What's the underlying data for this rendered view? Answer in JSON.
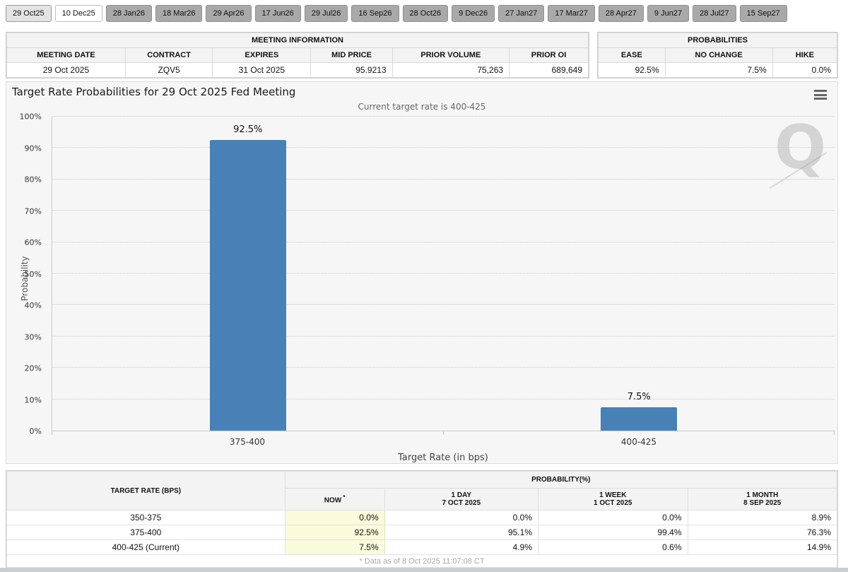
{
  "tabs": [
    {
      "label": "29 Oct25",
      "state": "selected"
    },
    {
      "label": "10 Dec25",
      "state": "active"
    },
    {
      "label": "28 Jan26",
      "state": "default"
    },
    {
      "label": "18 Mar26",
      "state": "default"
    },
    {
      "label": "29 Apr26",
      "state": "default"
    },
    {
      "label": "17 Jun26",
      "state": "default"
    },
    {
      "label": "29 Jul26",
      "state": "default"
    },
    {
      "label": "16 Sep26",
      "state": "default"
    },
    {
      "label": "28 Oct26",
      "state": "default"
    },
    {
      "label": "9 Dec26",
      "state": "default"
    },
    {
      "label": "27 Jan27",
      "state": "default"
    },
    {
      "label": "17 Mar27",
      "state": "default"
    },
    {
      "label": "28 Apr27",
      "state": "default"
    },
    {
      "label": "9 Jun27",
      "state": "default"
    },
    {
      "label": "28 Jul27",
      "state": "default"
    },
    {
      "label": "15 Sep27",
      "state": "default"
    }
  ],
  "meeting_info": {
    "title": "MEETING INFORMATION",
    "headers": [
      "MEETING DATE",
      "CONTRACT",
      "EXPIRES",
      "MID PRICE",
      "PRIOR VOLUME",
      "PRIOR OI"
    ],
    "row": {
      "meeting_date": "29 Oct 2025",
      "contract": "ZQV5",
      "expires": "31 Oct 2025",
      "mid_price": "95.9213",
      "prior_volume": "75,263",
      "prior_oi": "689,649"
    }
  },
  "probabilities_panel": {
    "title": "PROBABILITIES",
    "headers": [
      "EASE",
      "NO CHANGE",
      "HIKE"
    ],
    "row": {
      "ease": "92.5%",
      "no_change": "7.5%",
      "hike": "0.0%"
    }
  },
  "chart": {
    "menu_icon": "hamburger-icon",
    "watermark_letter": "Q"
  },
  "chart_data": {
    "type": "bar",
    "title": "Target Rate Probabilities for 29 Oct 2025 Fed Meeting",
    "subtitle": "Current target rate is 400-425",
    "categories": [
      "375-400",
      "400-425"
    ],
    "values": [
      92.5,
      7.5
    ],
    "bar_labels": [
      "92.5%",
      "7.5%"
    ],
    "xlabel": "Target Rate (in bps)",
    "ylabel": "Probability",
    "ylim": [
      0,
      100
    ],
    "ytick_step": 10,
    "grid": "dotted horizontal",
    "legend": "none",
    "bar_color": "#4781b5"
  },
  "history_table": {
    "rate_header": "TARGET RATE (BPS)",
    "group_header": "PROBABILITY(%)",
    "columns": [
      {
        "line1": "NOW",
        "sup": "*",
        "line2": ""
      },
      {
        "line1": "1 DAY",
        "line2": "7 OCT 2025"
      },
      {
        "line1": "1 WEEK",
        "line2": "1 OCT 2025"
      },
      {
        "line1": "1 MONTH",
        "line2": "8 SEP 2025"
      }
    ],
    "rows": [
      {
        "rate": "350-375",
        "now": "0.0%",
        "day": "0.0%",
        "week": "0.0%",
        "month": "8.9%"
      },
      {
        "rate": "375-400",
        "now": "92.5%",
        "day": "95.1%",
        "week": "99.4%",
        "month": "76.3%"
      },
      {
        "rate": "400-425 (Current)",
        "now": "7.5%",
        "day": "4.9%",
        "week": "0.6%",
        "month": "14.9%"
      }
    ],
    "footnote": "* Data as of 8 Oct 2025 11:07:08 CT"
  }
}
